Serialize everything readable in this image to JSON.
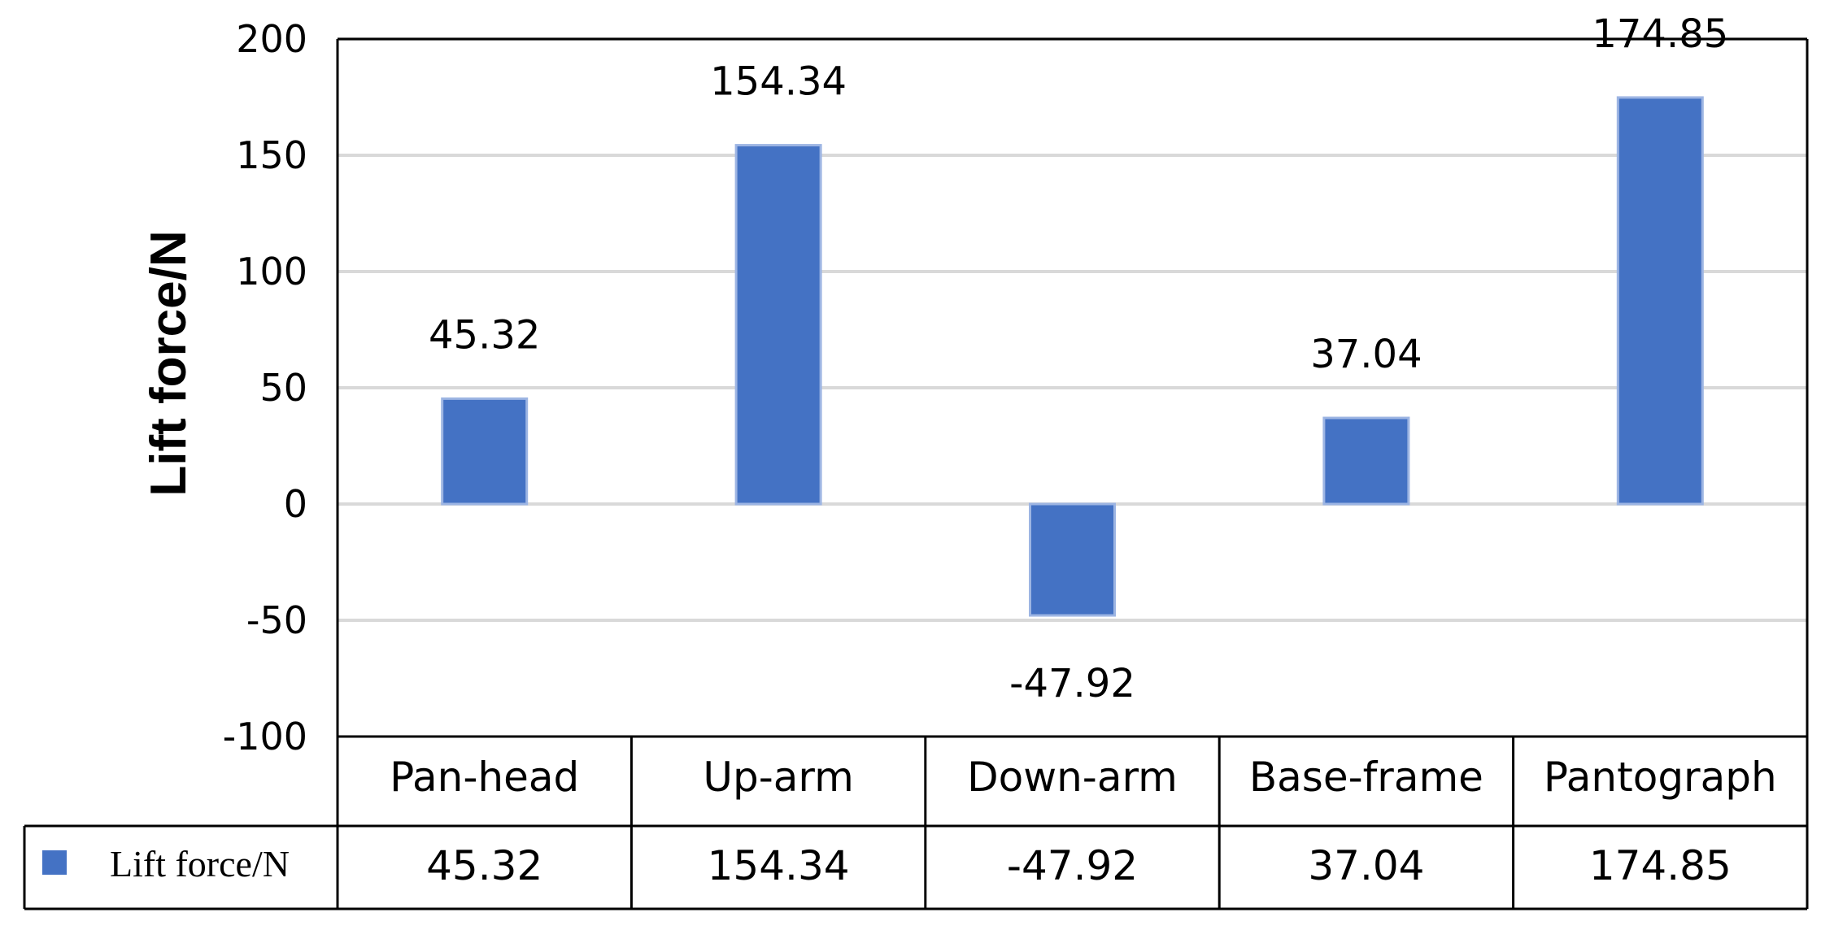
{
  "chart_data": {
    "type": "bar",
    "categories": [
      "Pan-head",
      "Up-arm",
      "Down-arm",
      "Base-frame",
      "Pantograph"
    ],
    "series": [
      {
        "name": "Lift force/N",
        "values": [
          45.32,
          154.34,
          -47.92,
          37.04,
          174.85
        ]
      }
    ],
    "data_labels": [
      "45.32",
      "154.34",
      "-47.92",
      "37.04",
      "174.85"
    ],
    "ylabel": "Lift force/N",
    "ylim": [
      -100,
      200
    ],
    "yticks": [
      "200",
      "150",
      "100",
      "50",
      "0",
      "-50",
      "-100"
    ],
    "ytick_values": [
      200,
      150,
      100,
      50,
      0,
      -50,
      -100
    ],
    "grid": true,
    "legend": "data-table",
    "bar_color": "#4472C4",
    "grid_color": "#D9D9D9"
  }
}
